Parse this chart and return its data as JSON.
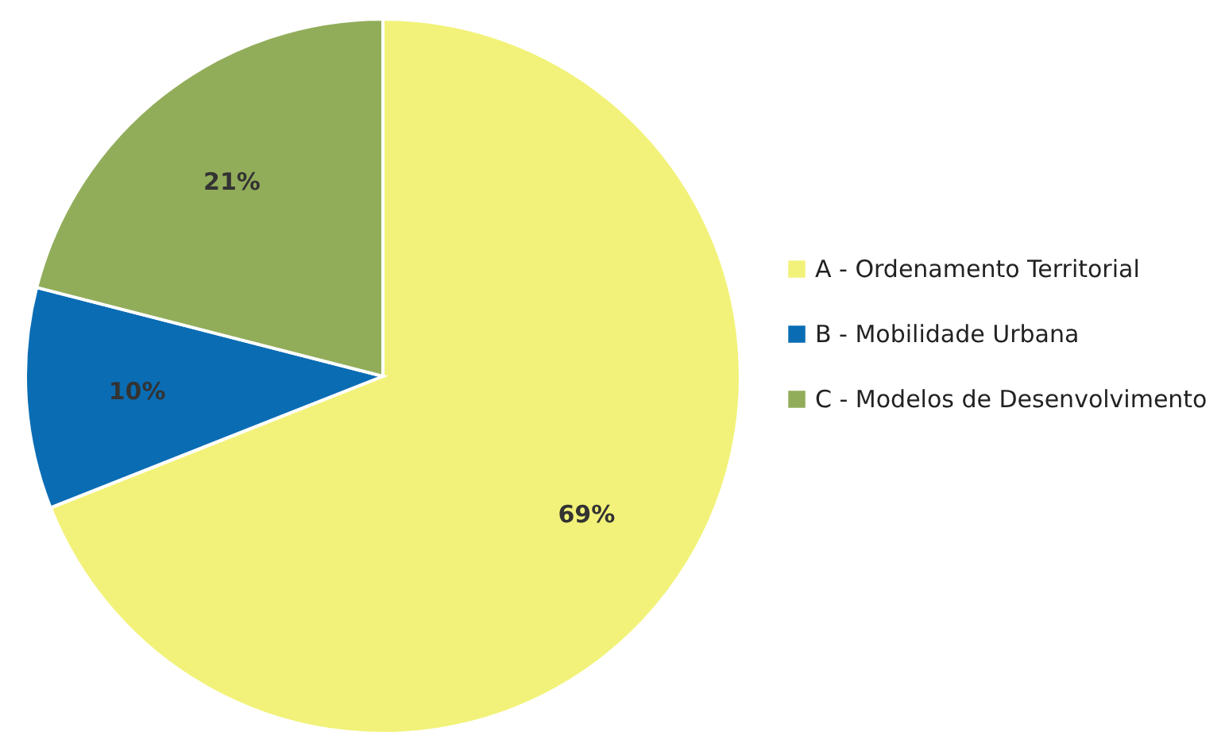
{
  "chart_data": {
    "type": "pie",
    "categories": [
      "A - Ordenamento Territorial",
      "B - Mobilidade Urbana",
      "C - Modelos de Desenvolvimento"
    ],
    "values": [
      69,
      10,
      21
    ],
    "colors": [
      "#f2f27a",
      "#0a6db4",
      "#92ad5a"
    ],
    "value_labels": [
      "69%",
      "10%",
      "21%"
    ],
    "legend": "right"
  }
}
